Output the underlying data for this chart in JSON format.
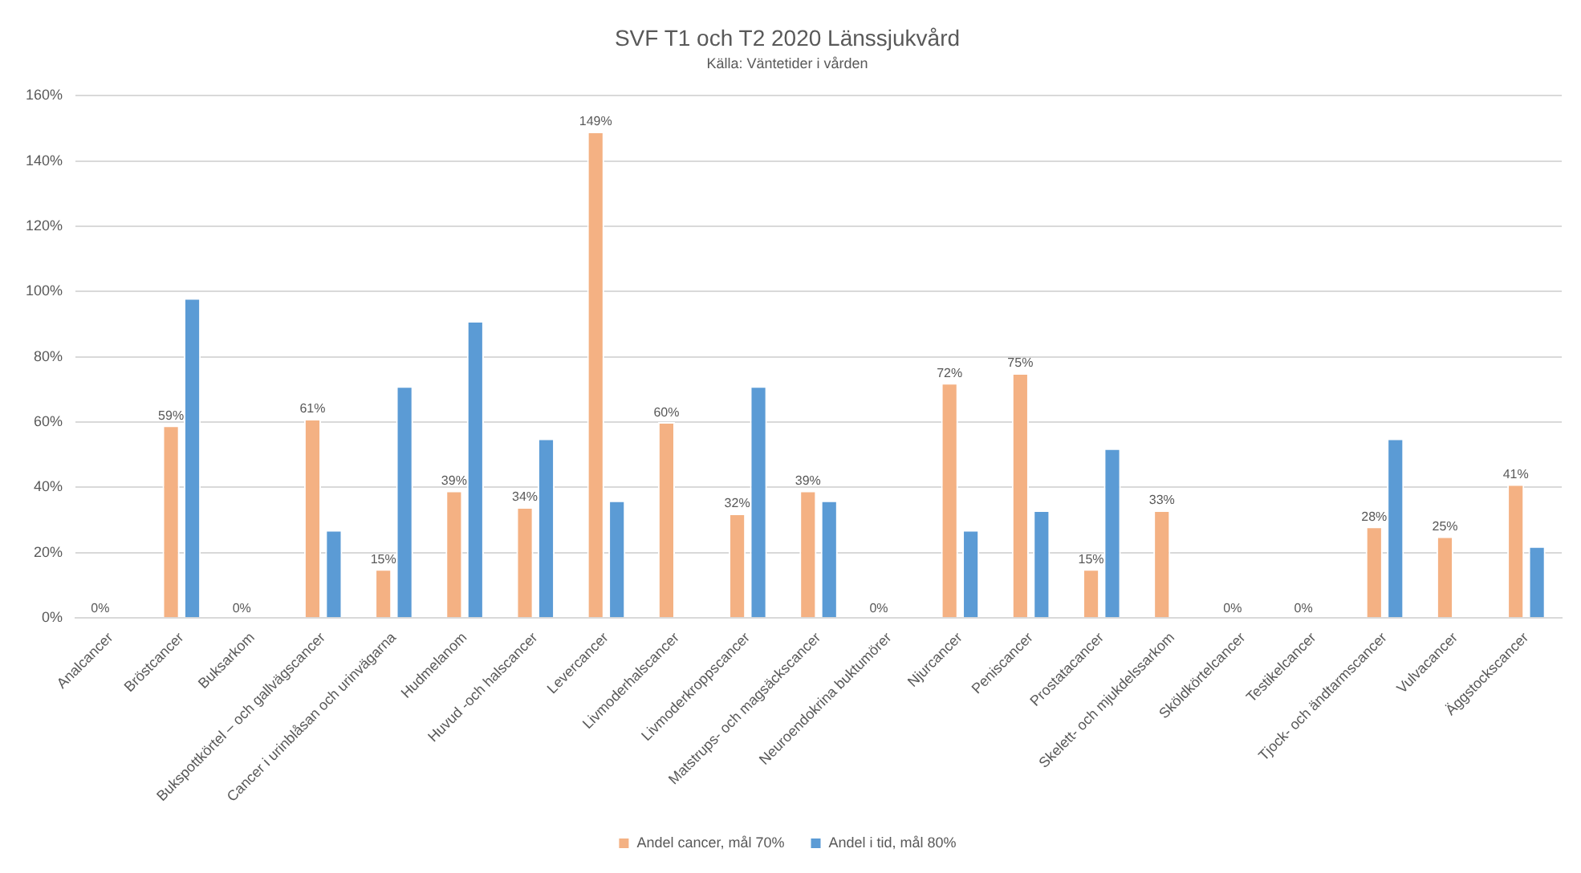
{
  "chart_data": {
    "type": "bar",
    "title": "SVF T1 och T2 2020 Länssjukvård",
    "subtitle": "Källa: Väntetider i vården",
    "categories": [
      "Analcancer",
      "Bröstcancer",
      "Buksarkom",
      "Bukspottkörtel – och gallvägscancer",
      "Cancer i urinblåsan och urinvägarna",
      "Hudmelanom",
      "Huvud -och halscancer",
      "Levercancer",
      "Livmoderhalscancer",
      "Livmoderkroppscancer",
      "Matstrups- och magsäckscancer",
      "Neuroendokrina buktumörer",
      "Njurcancer",
      "Peniscancer",
      "Prostatacancer",
      "Skelett- och mjukdelssarkom",
      "Sköldkörtelcancer",
      "Testikelcancer",
      "Tjock- och ändtarmscancer",
      "Vulvacancer",
      "Äggstockscancer"
    ],
    "series": [
      {
        "name": "Andel cancer, mål 70%",
        "color": "#f4b183",
        "values": [
          0,
          59,
          0,
          61,
          15,
          39,
          34,
          149,
          60,
          32,
          39,
          0,
          72,
          75,
          15,
          33,
          0,
          0,
          28,
          25,
          41
        ],
        "value_labels": [
          "0%",
          "59%",
          "0%",
          "61%",
          "15%",
          "39%",
          "34%",
          "149%",
          "60%",
          "32%",
          "39%",
          "0%",
          "72%",
          "75%",
          "15%",
          "33%",
          "0%",
          "0%",
          "28%",
          "25%",
          "41%"
        ]
      },
      {
        "name": "Andel i tid, mål 80%",
        "color": "#5b9bd5",
        "values": [
          null,
          98,
          null,
          27,
          71,
          91,
          55,
          36,
          null,
          71,
          36,
          null,
          27,
          33,
          52,
          null,
          null,
          null,
          55,
          null,
          22
        ]
      }
    ],
    "ylim": [
      0,
      160
    ],
    "yticks": [
      {
        "value": 0,
        "label": "0%"
      },
      {
        "value": 20,
        "label": "20%"
      },
      {
        "value": 40,
        "label": "40%"
      },
      {
        "value": 60,
        "label": "60%"
      },
      {
        "value": 80,
        "label": "80%"
      },
      {
        "value": 100,
        "label": "100%"
      },
      {
        "value": 120,
        "label": "120%"
      },
      {
        "value": 140,
        "label": "140%"
      },
      {
        "value": 160,
        "label": "160%"
      }
    ],
    "grid": "y",
    "legend": "bottom"
  }
}
